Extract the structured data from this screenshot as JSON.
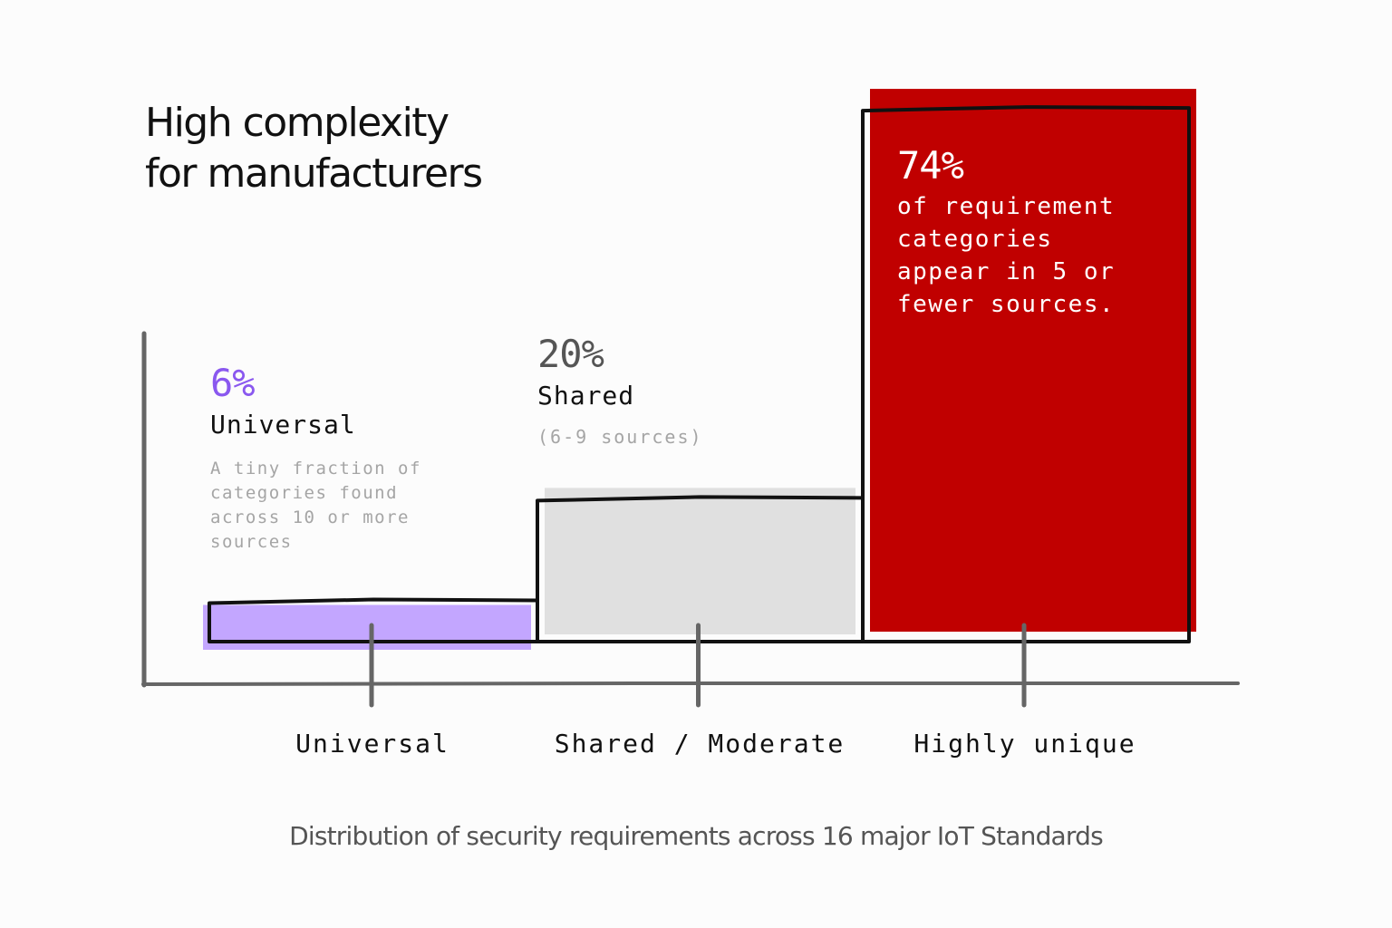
{
  "title_line1": "High complexity",
  "title_line2": "for manufacturers",
  "caption": "Distribution of security requirements across 16 major IoT Standards",
  "annotations": {
    "universal": {
      "percent": "6%",
      "label": "Universal",
      "description": "A tiny fraction of categories found across 10 or more sources"
    },
    "shared": {
      "percent": "20%",
      "label": "Shared",
      "description": "(6-9 sources)"
    },
    "unique": {
      "percent": "74%",
      "description": "of requirement categories appear in 5 or fewer sources."
    }
  },
  "colors": {
    "universal": "#c3a6ff",
    "shared": "#e0e0e0",
    "unique": "#c00000",
    "axis": "#666666"
  },
  "chart_data": {
    "type": "bar",
    "categories": [
      "Universal",
      "Shared / Moderate",
      "Highly unique"
    ],
    "values": [
      6,
      20,
      74
    ],
    "title": "High complexity for manufacturers",
    "xlabel": "",
    "ylabel": "",
    "ylim": [
      0,
      80
    ],
    "grid": false,
    "legend": "none"
  }
}
